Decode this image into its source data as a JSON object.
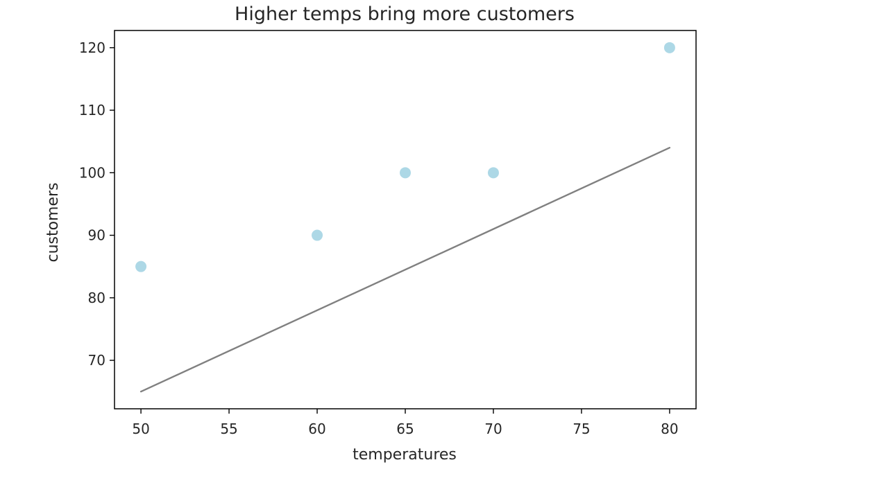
{
  "chart_data": {
    "type": "scatter",
    "title": "Higher temps bring more customers",
    "xlabel": "temperatures",
    "ylabel": "customers",
    "x_ticks": [
      50,
      55,
      60,
      65,
      70,
      75,
      80
    ],
    "y_ticks": [
      70,
      80,
      90,
      100,
      110,
      120
    ],
    "xlim": [
      48.5,
      81.5
    ],
    "ylim": [
      62.25,
      122.75
    ],
    "grid": false,
    "series": [
      {
        "type": "scatter",
        "color": "#add8e6",
        "points": [
          {
            "x": 50,
            "y": 85
          },
          {
            "x": 60,
            "y": 90
          },
          {
            "x": 65,
            "y": 100
          },
          {
            "x": 70,
            "y": 100
          },
          {
            "x": 80,
            "y": 120
          }
        ]
      },
      {
        "type": "line",
        "color": "#808080",
        "points": [
          {
            "x": 50,
            "y": 65
          },
          {
            "x": 80,
            "y": 104
          }
        ]
      }
    ]
  }
}
